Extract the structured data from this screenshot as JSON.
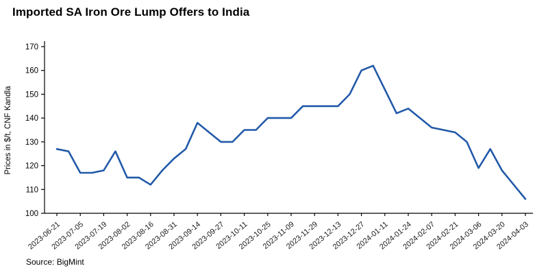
{
  "chart_data": {
    "type": "line",
    "title": "Imported SA Iron Ore Lump Offers to India",
    "ylabel": "Prices in $/t, CNF Kandla",
    "xlabel": "",
    "source": "Source: BigMint",
    "legend": null,
    "grid": false,
    "line_color": "#2159a8",
    "ylim": [
      100,
      170
    ],
    "y_ticks": [
      100,
      110,
      120,
      130,
      140,
      150,
      160,
      170
    ],
    "tick_every_n_points": 2,
    "x_tick_labels": [
      "2023-06-21",
      "2023-07-05",
      "2023-07-19",
      "2023-08-02",
      "2023-08-16",
      "2023-08-31",
      "2023-09-14",
      "2023-09-27",
      "2023-10-11",
      "2023-10-25",
      "2023-11-09",
      "2023-11-29",
      "2023-12-13",
      "2023-12-27",
      "2024-01-11",
      "2024-01-24",
      "2024-02-07",
      "2024-02-21",
      "2024-03-06",
      "2024-03-20",
      "2024-04-03"
    ],
    "values": [
      127,
      126,
      117,
      117,
      118,
      126,
      115,
      115,
      112,
      118,
      123,
      127,
      138,
      134,
      130,
      130,
      135,
      135,
      140,
      140,
      140,
      145,
      145,
      145,
      145,
      150,
      160,
      162,
      152,
      142,
      144,
      140,
      136,
      135,
      134,
      130,
      119,
      127,
      118,
      112,
      106
    ]
  }
}
